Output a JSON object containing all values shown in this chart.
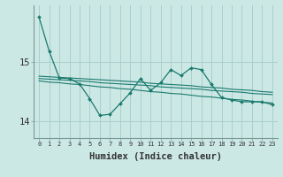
{
  "title": "",
  "xlabel": "Humidex (Indice chaleur)",
  "ylabel": "",
  "bg_color": "#cce8e5",
  "grid_color": "#aacfcc",
  "line_color": "#1a7a6e",
  "x": [
    0,
    1,
    2,
    3,
    4,
    5,
    6,
    7,
    8,
    9,
    10,
    11,
    12,
    13,
    14,
    15,
    16,
    17,
    18,
    19,
    20,
    21,
    22,
    23
  ],
  "y_main": [
    15.75,
    15.18,
    14.73,
    14.72,
    14.63,
    14.38,
    14.1,
    14.12,
    14.3,
    14.48,
    14.72,
    14.52,
    14.65,
    14.87,
    14.77,
    14.9,
    14.87,
    14.62,
    14.4,
    14.36,
    14.33,
    14.33,
    14.33,
    14.28
  ],
  "y_mid": [
    14.72,
    14.71,
    14.7,
    14.69,
    14.68,
    14.67,
    14.65,
    14.64,
    14.63,
    14.62,
    14.61,
    14.6,
    14.58,
    14.57,
    14.56,
    14.55,
    14.54,
    14.52,
    14.51,
    14.5,
    14.49,
    14.47,
    14.46,
    14.45
  ],
  "y_upper": [
    14.76,
    14.75,
    14.74,
    14.73,
    14.72,
    14.71,
    14.7,
    14.69,
    14.68,
    14.67,
    14.66,
    14.64,
    14.63,
    14.62,
    14.61,
    14.6,
    14.58,
    14.57,
    14.56,
    14.54,
    14.53,
    14.52,
    14.5,
    14.49
  ],
  "y_lower": [
    14.68,
    14.66,
    14.65,
    14.63,
    14.62,
    14.6,
    14.58,
    14.57,
    14.55,
    14.54,
    14.52,
    14.5,
    14.49,
    14.47,
    14.46,
    14.44,
    14.42,
    14.41,
    14.39,
    14.37,
    14.36,
    14.34,
    14.32,
    14.31
  ],
  "yticks": [
    14,
    15
  ],
  "ylim": [
    13.72,
    15.95
  ],
  "xlim": [
    -0.5,
    23.5
  ]
}
